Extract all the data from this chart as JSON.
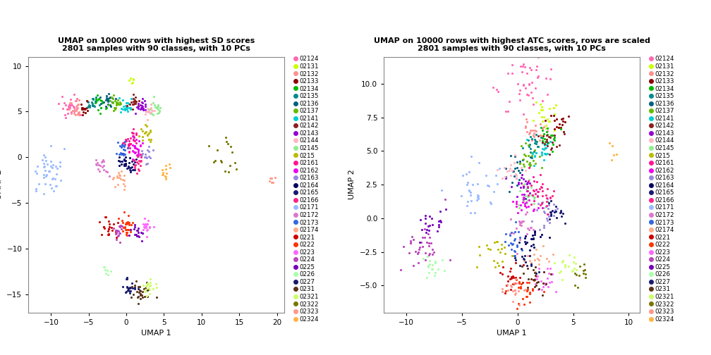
{
  "title1": "UMAP on 10000 rows with highest SD scores\n2801 samples with 90 classes, with 10 PCs",
  "title2": "UMAP on 10000 rows with highest ATC scores, rows are scaled\n2801 samples with 90 classes, with 10 PCs",
  "xlabel": "UMAP 1",
  "ylabel": "UMAP 2",
  "xlim1": [
    -13,
    21
  ],
  "ylim1": [
    -17,
    11
  ],
  "xlim2": [
    -12,
    11
  ],
  "ylim2": [
    -7,
    12
  ],
  "classes": [
    "02124",
    "02131",
    "02132",
    "02133",
    "02134",
    "02135",
    "02136",
    "02137",
    "02141",
    "02142",
    "02143",
    "02144",
    "02145",
    "0215",
    "02161",
    "02162",
    "02163",
    "02164",
    "02165",
    "02166",
    "02171",
    "02172",
    "02173",
    "02174",
    "0221",
    "0222",
    "0223",
    "0224",
    "0225",
    "0226",
    "0227",
    "0231",
    "02321",
    "02322",
    "02323",
    "02324"
  ],
  "colors": [
    "#FF69B4",
    "#CCFF00",
    "#FF9090",
    "#8B0000",
    "#00BB00",
    "#008B8B",
    "#006080",
    "#66BB00",
    "#00CED1",
    "#8B2020",
    "#9400D3",
    "#FFB6C1",
    "#90EE90",
    "#BBBB00",
    "#FF1493",
    "#EE00EE",
    "#9988DD",
    "#000060",
    "#191970",
    "#FF2288",
    "#99BBFF",
    "#DD77CC",
    "#3366E1",
    "#FFAA88",
    "#CC0000",
    "#FF3300",
    "#FF66FF",
    "#BB44BB",
    "#7700BB",
    "#AAFFAA",
    "#1A1A6E",
    "#5C3317",
    "#CCFF66",
    "#777700",
    "#FF9988",
    "#FFB347"
  ]
}
